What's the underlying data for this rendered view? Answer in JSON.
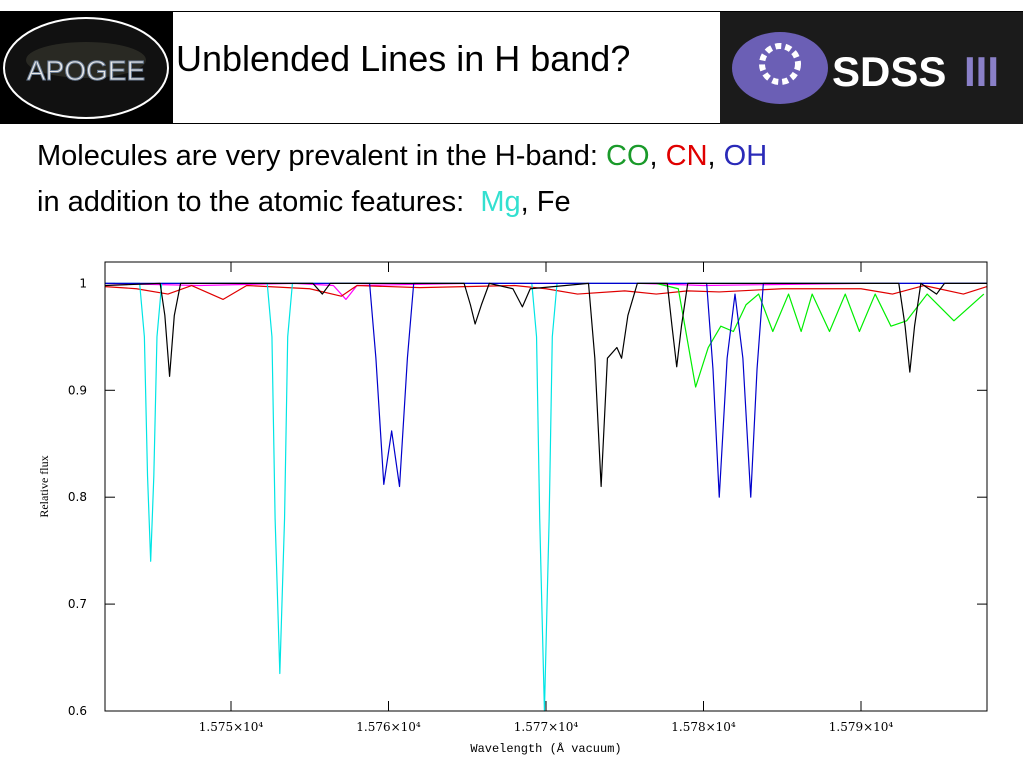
{
  "header": {
    "title": "Unblended Lines in H band?",
    "left_logo": "APOGEE",
    "right_logo": {
      "text": "SDSS",
      "suffix": "III"
    }
  },
  "body": {
    "lines": [
      [
        {
          "text": "Molecules are very prevalent in the H-band: ",
          "color": "#000000"
        },
        {
          "text": "CO",
          "color": "#1a9a2a"
        },
        {
          "text": ", ",
          "color": "#000000"
        },
        {
          "text": "CN",
          "color": "#e00000"
        },
        {
          "text": ", ",
          "color": "#000000"
        },
        {
          "text": "OH",
          "color": "#2a2ab8"
        }
      ],
      [
        {
          "text": "in addition to the atomic features:  ",
          "color": "#000000"
        },
        {
          "text": "Mg",
          "color": "#33e0d0"
        },
        {
          "text": ", Fe",
          "color": "#000000"
        }
      ]
    ]
  },
  "chart_data": {
    "type": "line",
    "x_label": "Wavelength (Å vacuum)",
    "y_label": "Relative flux",
    "xlim": [
      15742,
      15798
    ],
    "ylim": [
      0.6,
      1.02
    ],
    "xticks": [
      {
        "value": 15750,
        "label": "1.575×10⁴"
      },
      {
        "value": 15760,
        "label": "1.576×10⁴"
      },
      {
        "value": 15770,
        "label": "1.577×10⁴"
      },
      {
        "value": 15780,
        "label": "1.578×10⁴"
      },
      {
        "value": 15790,
        "label": "1.579×10⁴"
      }
    ],
    "yticks": [
      0.6,
      0.7,
      0.8,
      0.9,
      1
    ],
    "series": [
      {
        "color": "#ff00ff",
        "x": [
          15742,
          15748,
          15754,
          15756.5,
          15757.3,
          15758,
          15765,
          15776,
          15780,
          15790,
          15798
        ],
        "values": [
          1,
          0.998,
          1,
          0.998,
          0.985,
          0.998,
          1,
          1,
          0.998,
          1,
          1
        ]
      },
      {
        "color": "#e00000",
        "x": [
          15742,
          15744,
          15746,
          15747.5,
          15749.5,
          15751,
          15755,
          15757,
          15758,
          15762,
          15768,
          15770,
          15772,
          15775,
          15777,
          15779,
          15781,
          15785,
          15790,
          15792,
          15794,
          15796.5,
          15798
        ],
        "values": [
          0.997,
          0.995,
          0.99,
          0.998,
          0.985,
          0.998,
          0.995,
          0.988,
          0.998,
          0.996,
          0.998,
          0.995,
          0.99,
          0.993,
          0.99,
          0.993,
          0.992,
          0.995,
          0.995,
          0.99,
          0.998,
          0.99,
          0.997
        ]
      },
      {
        "color": "#00ee00",
        "x": [
          15777,
          15778.4,
          15779.5,
          15780.3,
          15781.1,
          15781.9,
          15782.7,
          15783.5,
          15784.4,
          15785.4,
          15786.2,
          15786.9,
          15788,
          15789,
          15789.9,
          15790.9,
          15791.9,
          15792.9,
          15794.2,
          15795.9,
          15797.8
        ],
        "values": [
          1,
          0.995,
          0.903,
          0.94,
          0.96,
          0.955,
          0.98,
          0.99,
          0.955,
          0.99,
          0.955,
          0.99,
          0.955,
          0.99,
          0.955,
          0.99,
          0.96,
          0.965,
          0.99,
          0.965,
          0.99
        ]
      },
      {
        "color": "#00e5e5",
        "x": [
          15742,
          15744.2,
          15744.5,
          15744.7,
          15744.9,
          15745.1,
          15745.3,
          15745.6,
          15752.3,
          15752.6,
          15752.8,
          15753.1,
          15753.4,
          15753.6,
          15753.9,
          15769.1,
          15769.4,
          15769.6,
          15769.9,
          15770.2,
          15770.4,
          15770.7,
          15798
        ],
        "values": [
          1,
          1,
          0.95,
          0.82,
          0.74,
          0.82,
          0.95,
          1,
          1,
          0.95,
          0.78,
          0.635,
          0.78,
          0.95,
          1,
          1,
          0.95,
          0.78,
          0.6,
          0.78,
          0.95,
          1,
          1
        ]
      },
      {
        "color": "#0000cc",
        "x": [
          15742,
          15758.8,
          15759.2,
          15759.7,
          15760.2,
          15760.7,
          15761.2,
          15761.6,
          15780.2,
          15780.6,
          15781,
          15781.5,
          15782,
          15782.5,
          15783,
          15783.4,
          15783.8,
          15798
        ],
        "values": [
          1,
          1,
          0.93,
          0.812,
          0.862,
          0.81,
          0.93,
          1,
          1,
          0.92,
          0.8,
          0.93,
          0.99,
          0.93,
          0.8,
          0.92,
          1,
          1
        ]
      },
      {
        "color": "#000000",
        "x": [
          15742,
          15745.5,
          15745.8,
          15746.1,
          15746.4,
          15746.8,
          15755.2,
          15755.8,
          15756.3,
          15764.8,
          15765.2,
          15765.5,
          15765.9,
          15766.4,
          15767.9,
          15768.5,
          15769,
          15772.7,
          15773.1,
          15773.5,
          15773.9,
          15774.5,
          15774.8,
          15775.2,
          15775.8,
          15777.7,
          15778,
          15778.3,
          15778.6,
          15779,
          15792.4,
          15792.8,
          15793.1,
          15793.4,
          15793.8,
          15794.8,
          15795.3,
          15798
        ],
        "values": [
          0.998,
          1,
          0.97,
          0.913,
          0.97,
          1,
          1,
          0.99,
          1,
          1,
          0.98,
          0.962,
          0.98,
          1,
          0.995,
          0.978,
          0.995,
          1,
          0.93,
          0.81,
          0.93,
          0.94,
          0.93,
          0.97,
          1,
          1,
          0.96,
          0.922,
          0.96,
          1,
          1,
          0.96,
          0.917,
          0.96,
          1,
          0.99,
          1,
          1
        ]
      }
    ]
  }
}
